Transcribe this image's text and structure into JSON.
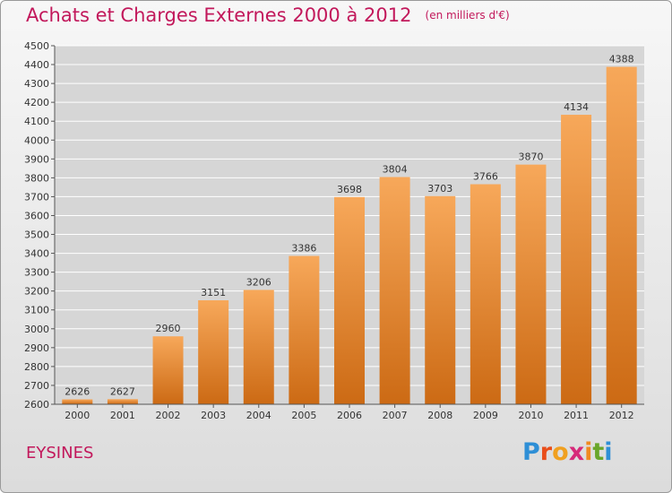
{
  "header": {
    "title": "Achats et Charges Externes 2000 à 2012",
    "unit": "(en milliers d'€)"
  },
  "footer": {
    "town": "EYSINES",
    "logo_letters": [
      "P",
      "r",
      "o",
      "x",
      "i",
      "t",
      "i"
    ]
  },
  "colors": {
    "title": "#c2185b",
    "bar_top": "#f7a85a",
    "bar_bottom": "#cc6a14",
    "grid": "#ffffff"
  },
  "chart_data": {
    "type": "bar",
    "categories": [
      "2000",
      "2001",
      "2002",
      "2003",
      "2004",
      "2005",
      "2006",
      "2007",
      "2008",
      "2009",
      "2010",
      "2011",
      "2012"
    ],
    "values": [
      2626,
      2627,
      2960,
      3151,
      3206,
      3386,
      3698,
      3804,
      3703,
      3766,
      3870,
      4134,
      4388
    ],
    "ylim": [
      2600,
      4500
    ],
    "yticks": [
      2600,
      2700,
      2800,
      2900,
      3000,
      3100,
      3200,
      3300,
      3400,
      3500,
      3600,
      3700,
      3800,
      3900,
      4000,
      4100,
      4200,
      4300,
      4400,
      4500
    ],
    "grid": true,
    "data_labels": true,
    "xlabel": "",
    "ylabel": ""
  }
}
